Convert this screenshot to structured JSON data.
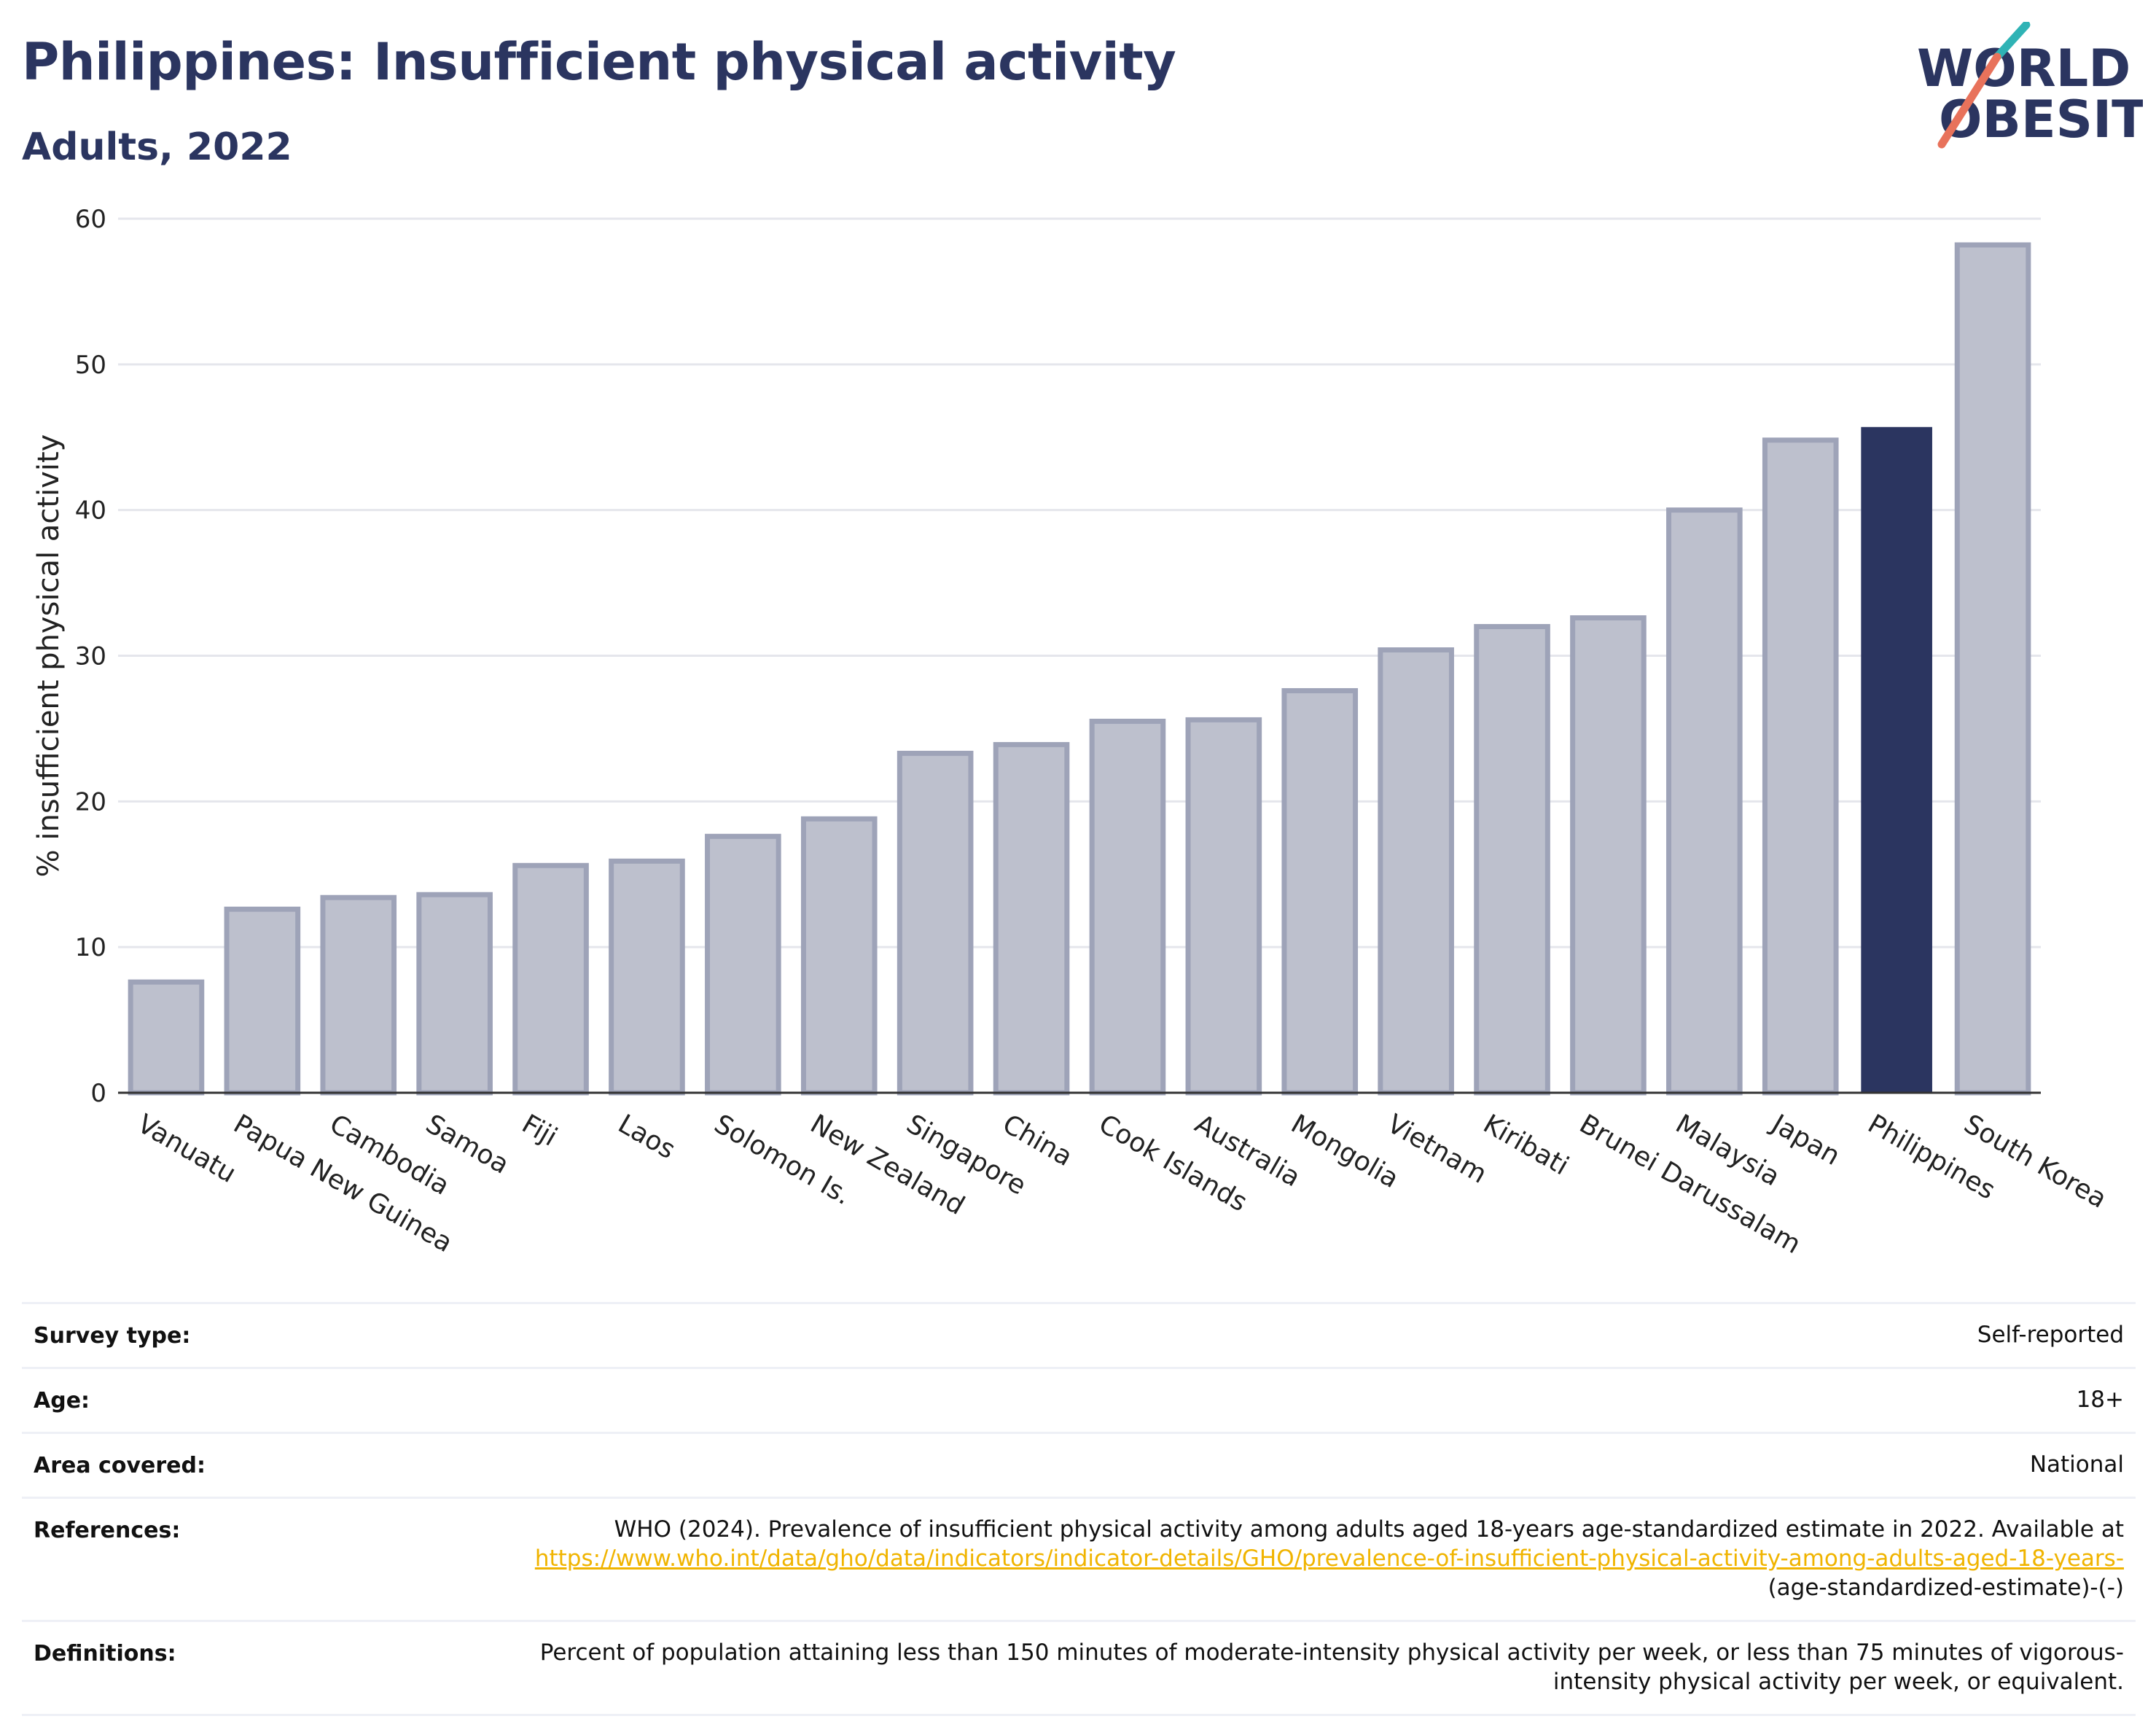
{
  "header": {
    "title": "Philippines: Insufficient physical activity",
    "subtitle": "Adults, 2022",
    "logo_line1": "WORLD",
    "logo_line2": "OBESITY"
  },
  "colors": {
    "highlight": "#2b3560",
    "bar_fill": "#bdc0cd",
    "bar_stroke": "#9ea3b8",
    "grid": "#e5e6ec",
    "logo_teal": "#2fb3b5",
    "logo_coral": "#e8725b",
    "link": "#f0b400"
  },
  "chart_data": {
    "type": "bar",
    "title": "Philippines: Insufficient physical activity",
    "subtitle": "Adults, 2022",
    "xlabel": "",
    "ylabel": "% insufficient physical activity",
    "ylim": [
      0,
      60
    ],
    "yticks": [
      0,
      10,
      20,
      30,
      40,
      50,
      60
    ],
    "grid": true,
    "highlight_category": "Philippines",
    "categories": [
      "Vanuatu",
      "Papua New Guinea",
      "Cambodia",
      "Samoa",
      "Fiji",
      "Laos",
      "Solomon Is.",
      "New Zealand",
      "Singapore",
      "China",
      "Cook Islands",
      "Australia",
      "Mongolia",
      "Vietnam",
      "Kiribati",
      "Brunei Darussalam",
      "Malaysia",
      "Japan",
      "Philippines",
      "South Korea"
    ],
    "values": [
      7.6,
      12.6,
      13.4,
      13.6,
      15.6,
      15.9,
      17.6,
      18.8,
      23.3,
      23.9,
      25.5,
      25.6,
      27.6,
      30.4,
      32.0,
      32.6,
      40.0,
      44.8,
      45.7,
      58.2
    ]
  },
  "info": {
    "rows": [
      {
        "label": "Survey type:",
        "value": "Self-reported"
      },
      {
        "label": "Age:",
        "value": "18+"
      },
      {
        "label": "Area covered:",
        "value": "National"
      }
    ],
    "references": {
      "label": "References:",
      "text": "WHO (2024). Prevalence of insufficient physical activity among adults aged 18-years age-standardized estimate in 2022. Available at",
      "link": "https://www.who.int/data/gho/data/indicators/indicator-details/GHO/prevalence-of-insufficient-physical-activity-among-adults-aged-18-years-",
      "suffix": "(age-standardized-estimate)-(-)"
    },
    "definitions": {
      "label": "Definitions:",
      "value": "Percent of population attaining less than 150 minutes of moderate-intensity physical activity per week, or less than 75 minutes of vigorous-intensity physical activity per week, or equivalent."
    }
  }
}
